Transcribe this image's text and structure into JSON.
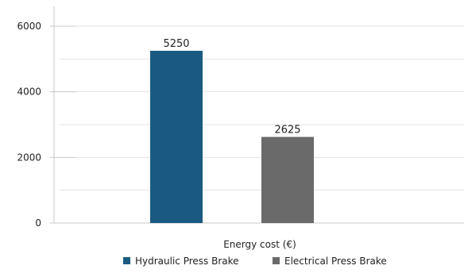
{
  "chart_data": {
    "type": "bar",
    "categories": [
      "Energy cost (€)"
    ],
    "xlabel": "Energy cost (€)",
    "ylabel": "",
    "title": "",
    "ylim": [
      0,
      6000
    ],
    "yticks": [
      0,
      2000,
      4000,
      6000
    ],
    "ytick_labels": [
      "0",
      "2000",
      "4000",
      "6000"
    ],
    "grid": true,
    "legend_position": "bottom",
    "series": [
      {
        "name": "Hydraulic Press Brake",
        "values": [
          5250
        ],
        "value_label": "5250",
        "color": "#1a5a82"
      },
      {
        "name": "Electrical Press Brake",
        "values": [
          2625
        ],
        "value_label": "2625",
        "color": "#6a6a6a"
      }
    ],
    "gridline_color": "#e3e3e3",
    "axis_color": "#c8c8c8"
  }
}
